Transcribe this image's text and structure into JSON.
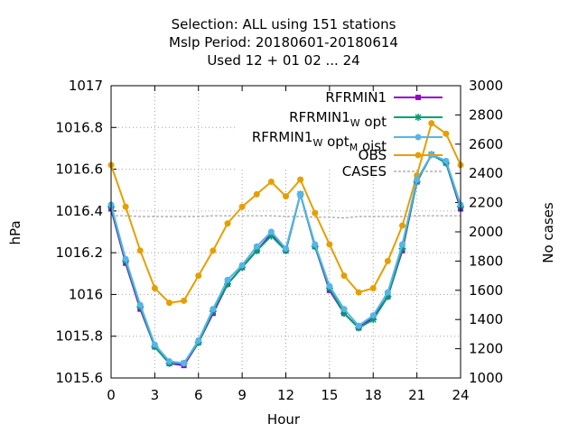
{
  "chart_data": {
    "type": "line",
    "title_lines": [
      "Selection: ALL using   151 stations",
      "Mslp   Period: 20180601-20180614",
      "Used  12 + 01 02 ... 24"
    ],
    "xlabel": "Hour",
    "ylabel": "hPa",
    "y2label": "No cases",
    "xlim": [
      0,
      24
    ],
    "ylim": [
      1015.6,
      1017
    ],
    "y2lim": [
      1000,
      3000
    ],
    "x_ticks": [
      0,
      3,
      6,
      9,
      12,
      15,
      18,
      21,
      24
    ],
    "y_ticks": [
      1015.6,
      1015.8,
      1016,
      1016.2,
      1016.4,
      1016.6,
      1016.8,
      1017
    ],
    "y2_ticks": [
      1000,
      1200,
      1400,
      1600,
      1800,
      2000,
      2200,
      2400,
      2600,
      2800,
      3000
    ],
    "y_tick_labels": [
      "1015.6",
      "1015.8",
      "1016",
      "1016.2",
      "1016.4",
      "1016.6",
      "1016.8",
      "1017"
    ],
    "y2_tick_labels": [
      "1000",
      "1200",
      "1400",
      "1600",
      "1800",
      "2000",
      "2200",
      "2400",
      "2600",
      "2800",
      "3000"
    ],
    "x_tick_labels": [
      "0",
      "3",
      "6",
      "9",
      "12",
      "15",
      "18",
      "21",
      "24"
    ],
    "grid": true,
    "legend_position": "top-right",
    "x": [
      0,
      1,
      2,
      3,
      4,
      5,
      6,
      7,
      8,
      9,
      10,
      11,
      12,
      13,
      14,
      15,
      16,
      17,
      18,
      19,
      20,
      21,
      22,
      23,
      24
    ],
    "series": [
      {
        "name": "RFRMIN1",
        "legend_parts": [
          {
            "text": "RFRMIN1",
            "sub": false
          }
        ],
        "color": "#9400d3",
        "marker": "square",
        "axis": "y1",
        "values": [
          1016.41,
          1016.15,
          1015.93,
          1015.75,
          1015.67,
          1015.66,
          1015.77,
          1015.91,
          1016.05,
          1016.13,
          1016.21,
          1016.29,
          1016.21,
          1016.48,
          1016.23,
          1016.02,
          1015.91,
          1015.84,
          1015.89,
          1015.99,
          1016.21,
          1016.54,
          1016.67,
          1016.63,
          1016.41
        ]
      },
      {
        "name": "RFRMIN1_W opt",
        "legend_parts": [
          {
            "text": "RFRMIN1",
            "sub": false
          },
          {
            "text": "W",
            "sub": true
          },
          {
            "text": " opt",
            "sub": false
          }
        ],
        "color": "#009e73",
        "marker": "star",
        "axis": "y1",
        "values": [
          1016.42,
          1016.16,
          1015.94,
          1015.75,
          1015.67,
          1015.67,
          1015.77,
          1015.92,
          1016.05,
          1016.13,
          1016.21,
          1016.28,
          1016.21,
          1016.48,
          1016.23,
          1016.03,
          1015.91,
          1015.84,
          1015.88,
          1015.99,
          1016.22,
          1016.54,
          1016.67,
          1016.63,
          1016.42
        ]
      },
      {
        "name": "RFRMIN1_W opt_M oist",
        "legend_parts": [
          {
            "text": "RFRMIN1",
            "sub": false
          },
          {
            "text": "W",
            "sub": true
          },
          {
            "text": " opt",
            "sub": false
          },
          {
            "text": "M",
            "sub": true
          },
          {
            "text": " oist",
            "sub": false
          }
        ],
        "color": "#56b4e9",
        "marker": "circle",
        "axis": "y1",
        "values": [
          1016.43,
          1016.17,
          1015.95,
          1015.76,
          1015.68,
          1015.67,
          1015.78,
          1015.93,
          1016.07,
          1016.14,
          1016.23,
          1016.3,
          1016.22,
          1016.48,
          1016.24,
          1016.04,
          1015.93,
          1015.85,
          1015.9,
          1016.01,
          1016.24,
          1016.55,
          1016.67,
          1016.64,
          1016.43
        ]
      },
      {
        "name": "OBS",
        "legend_parts": [
          {
            "text": "OBS",
            "sub": false
          }
        ],
        "color": "#e69f00",
        "marker": "circle",
        "axis": "y1",
        "values": [
          1016.62,
          1016.42,
          1016.21,
          1016.03,
          1015.96,
          1015.97,
          1016.09,
          1016.21,
          1016.34,
          1016.42,
          1016.48,
          1016.54,
          1016.47,
          1016.55,
          1016.39,
          1016.24,
          1016.09,
          1016.01,
          1016.03,
          1016.16,
          1016.33,
          1016.57,
          1016.82,
          1016.77,
          1016.62
        ]
      },
      {
        "name": "CASES",
        "legend_parts": [
          {
            "text": "CASES",
            "sub": false
          }
        ],
        "color": "#a0a0a0",
        "marker": "none",
        "dashed": true,
        "axis": "y2",
        "values": [
          2110,
          2110,
          2105,
          2105,
          2105,
          2105,
          2105,
          2110,
          2110,
          2110,
          2110,
          2110,
          2105,
          2105,
          2100,
          2100,
          2095,
          2105,
          2105,
          2105,
          2105,
          2110,
          2110,
          2110,
          2110
        ]
      }
    ]
  }
}
